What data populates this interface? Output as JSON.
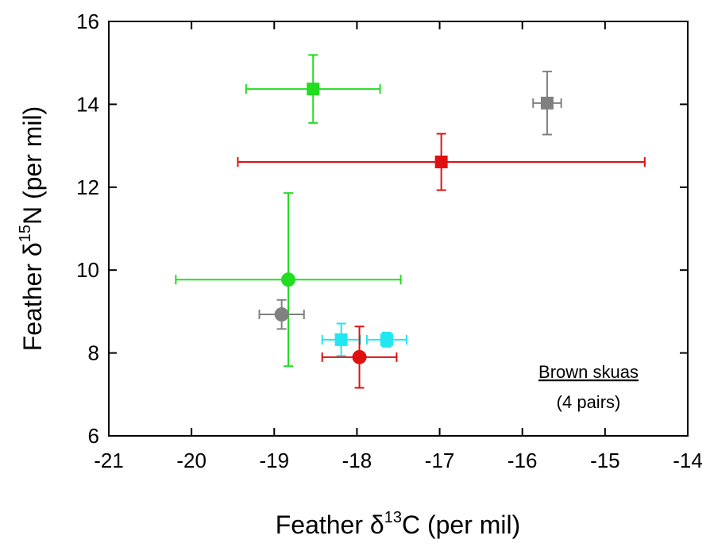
{
  "chart_data": {
    "type": "scatter",
    "x_label": {
      "prefix": "Feather δ",
      "sup": "13",
      "suffix": "C (per mil)"
    },
    "y_label": {
      "prefix": "Feather δ",
      "sup": "15",
      "suffix": "N (per mil)"
    },
    "xlim": [
      -21,
      -14
    ],
    "xticks": [
      -21,
      -20,
      -19,
      -18,
      -17,
      -16,
      -15,
      -14
    ],
    "ylim": [
      6,
      16
    ],
    "yticks": [
      6,
      8,
      10,
      12,
      14,
      16
    ],
    "annotation": {
      "title": "Brown skuas",
      "subtitle": "(4 pairs)"
    },
    "series": [
      {
        "color": "#22dd22",
        "marker": "square",
        "x": [
          -18.53
        ],
        "y": [
          14.37
        ],
        "xerr": [
          0.81
        ],
        "yerr": [
          0.82
        ]
      },
      {
        "color": "#808080",
        "marker": "square",
        "x": [
          -15.7
        ],
        "y": [
          14.03
        ],
        "xerr": [
          0.17
        ],
        "yerr": [
          0.76
        ]
      },
      {
        "color": "#e01010",
        "marker": "square",
        "x": [
          -16.98
        ],
        "y": [
          12.61
        ],
        "xerr": [
          2.46
        ],
        "yerr": [
          0.68
        ]
      },
      {
        "color": "#22dd22",
        "marker": "circle",
        "x": [
          -18.83
        ],
        "y": [
          9.77
        ],
        "xerr": [
          1.36
        ],
        "yerr": [
          2.09
        ]
      },
      {
        "color": "#808080",
        "marker": "circle",
        "x": [
          -18.91
        ],
        "y": [
          8.93
        ],
        "xerr": [
          0.27
        ],
        "yerr": [
          0.35
        ]
      },
      {
        "color": "#22e6f0",
        "marker": "square",
        "x": [
          -18.19
        ],
        "y": [
          8.32
        ],
        "xerr": [
          0.23
        ],
        "yerr": [
          0.39
        ]
      },
      {
        "color": "#22e6f0",
        "marker": "square",
        "x": [
          -17.64
        ],
        "y": [
          8.32
        ],
        "xerr": [
          0.24
        ],
        "yerr": [
          0.17
        ]
      },
      {
        "color": "#e01010",
        "marker": "circle",
        "x": [
          -17.97
        ],
        "y": [
          7.9
        ],
        "xerr": [
          0.45
        ],
        "yerr": [
          0.74
        ]
      }
    ]
  }
}
